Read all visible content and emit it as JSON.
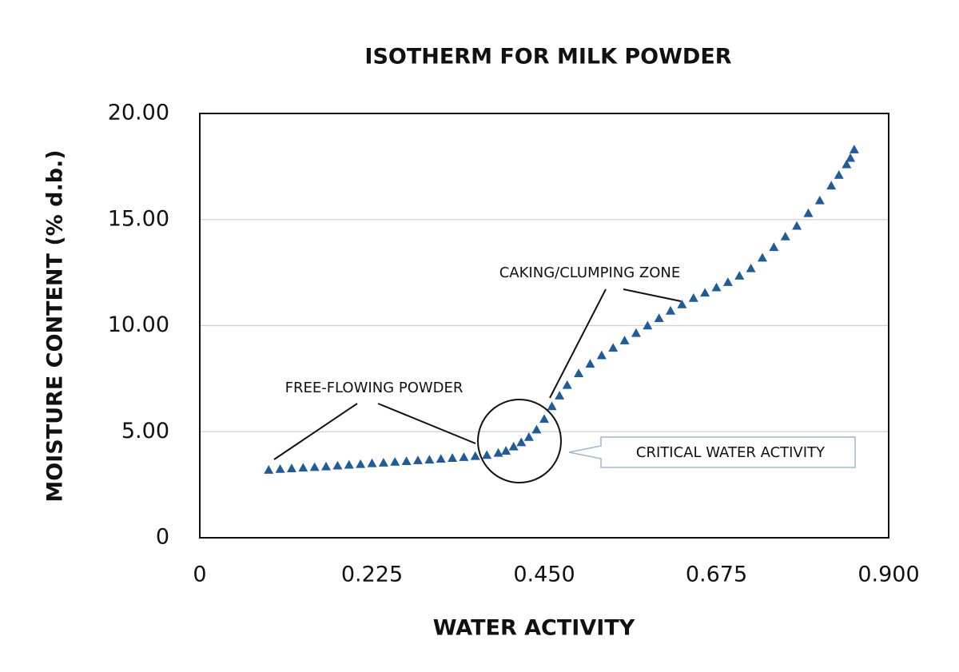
{
  "chart_data": {
    "type": "scatter",
    "title": "ISOTHERM FOR MILK POWDER",
    "x_label": "WATER ACTIVITY",
    "y_label": "MOISTURE CONTENT (% d.b.)",
    "color": "#1f5c99",
    "grid": true,
    "annotations": [
      "FREE-FLOWING POWDER",
      "CAKING/CLUMPING ZONE",
      "CRITICAL WATER ACTIVITY"
    ],
    "xlim": [
      0,
      0.9
    ],
    "xticks": [
      0,
      0.225,
      {
        "value": 0.45,
        "label": "0.450"
      },
      0.675,
      {
        "value": 0.9,
        "label": "0.900"
      }
    ],
    "ylim": [
      0,
      20
    ],
    "yticks": [
      0,
      {
        "value": 5,
        "label": "5.00"
      },
      {
        "value": 10,
        "label": "10.00"
      },
      {
        "value": 15,
        "label": "15.00"
      },
      {
        "value": 20,
        "label": "20.00"
      }
    ],
    "x": [
      0.09,
      0.105,
      0.12,
      0.135,
      0.15,
      0.165,
      0.18,
      0.195,
      0.21,
      0.225,
      0.24,
      0.255,
      0.27,
      0.285,
      0.3,
      0.315,
      0.33,
      0.345,
      0.36,
      0.375,
      0.39,
      0.4,
      0.41,
      0.42,
      0.43,
      0.44,
      0.45,
      0.46,
      0.47,
      0.48,
      0.495,
      0.51,
      0.525,
      0.54,
      0.555,
      0.57,
      0.585,
      0.6,
      0.615,
      0.63,
      0.645,
      0.66,
      0.675,
      0.69,
      0.705,
      0.72,
      0.735,
      0.75,
      0.765,
      0.78,
      0.795,
      0.81,
      0.825,
      0.835,
      0.845,
      0.85,
      0.855
    ],
    "values": [
      3.2,
      3.24,
      3.27,
      3.3,
      3.33,
      3.36,
      3.4,
      3.44,
      3.47,
      3.51,
      3.54,
      3.58,
      3.61,
      3.65,
      3.68,
      3.72,
      3.76,
      3.8,
      3.85,
      3.9,
      4.0,
      4.1,
      4.3,
      4.5,
      4.75,
      5.1,
      5.6,
      6.2,
      6.7,
      7.2,
      7.75,
      8.2,
      8.6,
      8.95,
      9.3,
      9.65,
      10.0,
      10.35,
      10.7,
      11.0,
      11.3,
      11.55,
      11.8,
      12.05,
      12.35,
      12.7,
      13.2,
      13.7,
      14.2,
      14.7,
      15.3,
      15.9,
      16.6,
      17.1,
      17.6,
      17.9,
      18.3
    ]
  }
}
